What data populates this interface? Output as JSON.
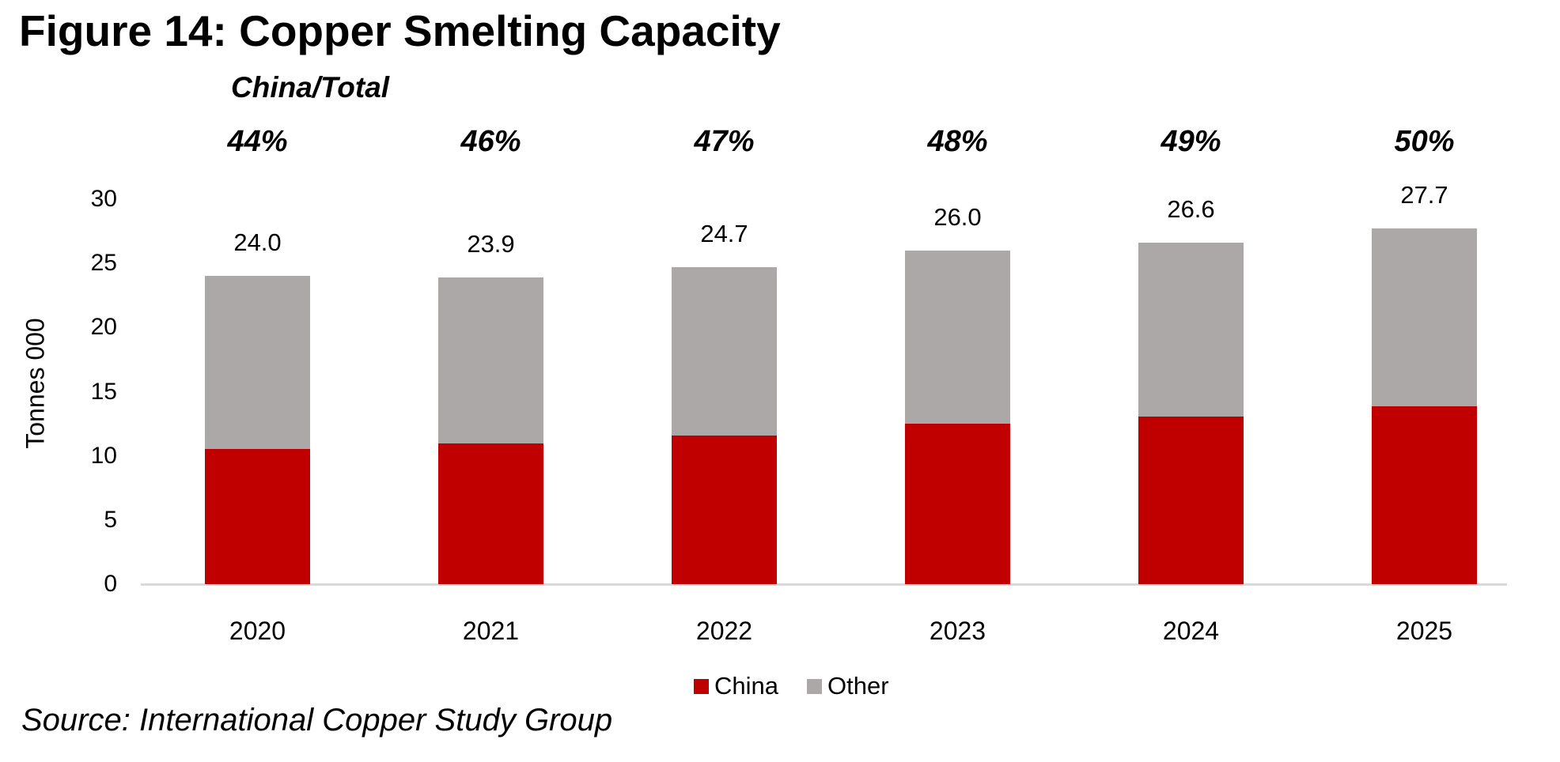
{
  "title": "Figure 14: Copper Smelting Capacity",
  "annotation_header": "China/Total",
  "source": "Source: International Copper Study Group",
  "colors": {
    "china": "#C00000",
    "other": "#ACA8A8",
    "axis_line": "#D9D9D9",
    "text": "#000000"
  },
  "legend": [
    {
      "label": "China",
      "color": "#C00000"
    },
    {
      "label": "Other",
      "color": "#ACA8A8"
    }
  ],
  "chart_data": {
    "type": "bar",
    "stacked": true,
    "title": "Figure 14: Copper Smelting Capacity",
    "categories": [
      "2020",
      "2021",
      "2022",
      "2023",
      "2024",
      "2025"
    ],
    "totals": [
      24.0,
      23.9,
      24.7,
      26.0,
      26.6,
      27.7
    ],
    "total_labels": [
      "24.0",
      "23.9",
      "24.7",
      "26.0",
      "26.6",
      "27.7"
    ],
    "china_share_pct": [
      44,
      46,
      47,
      48,
      49,
      50
    ],
    "china_share_labels": [
      "44%",
      "46%",
      "47%",
      "48%",
      "49%",
      "50%"
    ],
    "series": [
      {
        "name": "China",
        "values": [
          10.6,
          11.0,
          11.6,
          12.5,
          13.0,
          13.9
        ]
      },
      {
        "name": "Other",
        "values": [
          13.4,
          12.9,
          13.1,
          13.5,
          13.6,
          13.9
        ]
      }
    ],
    "xlabel": "",
    "ylabel": "Tonnes 000",
    "yticks": [
      0,
      5,
      10,
      15,
      20,
      25,
      30
    ],
    "ylim": [
      0,
      30
    ],
    "grid": false,
    "legend_position": "bottom"
  }
}
